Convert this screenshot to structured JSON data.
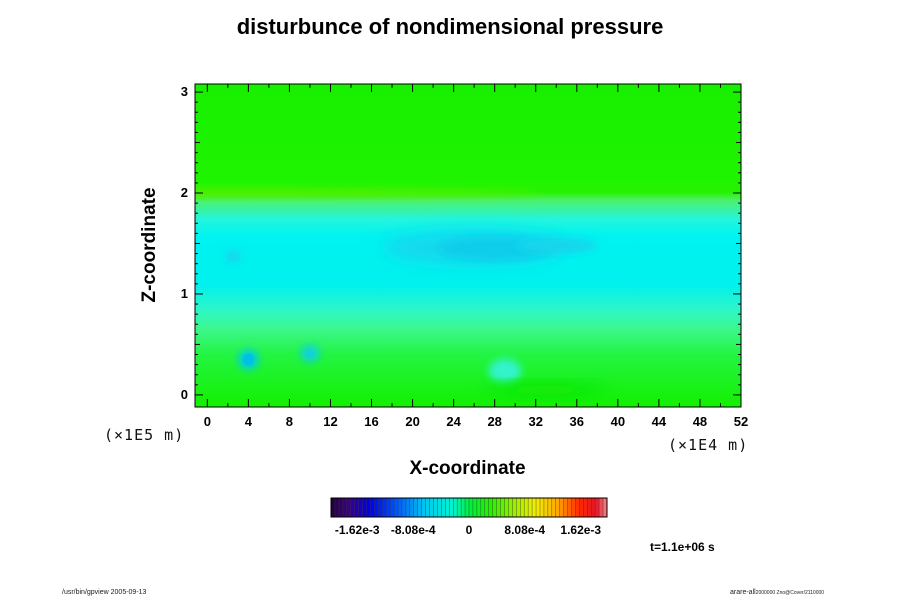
{
  "chart_data": {
    "type": "heatmap",
    "title": "disturbunce of nondimensional pressure",
    "xlabel": "X-coordinate",
    "ylabel": "Z-coordinate",
    "x_unit": "(×1E4 m)",
    "y_unit": "(×1E5 m)",
    "xlim": [
      -1.2,
      52
    ],
    "ylim": [
      -0.12,
      3.08
    ],
    "x_ticks": [
      "0",
      "4",
      "8",
      "12",
      "16",
      "20",
      "24",
      "28",
      "32",
      "36",
      "40",
      "44",
      "48",
      "52"
    ],
    "y_ticks": [
      "0",
      "1",
      "2",
      "3"
    ],
    "colorbar": {
      "range": [
        -0.002,
        0.002
      ],
      "tick_labels": [
        "-1.62e-3",
        "-8.08e-4",
        "0",
        "8.08e-4",
        "1.62e-3"
      ],
      "tick_values": [
        -0.00162,
        -0.000808,
        0,
        0.000808,
        0.00162
      ]
    },
    "field_summary": [
      {
        "region": "z 1.9–3.08",
        "value": 0.0
      },
      {
        "region": "z 1.0–1.9",
        "value": -0.0006
      },
      {
        "region": "x 20–36, z 1.3–1.6",
        "value": -0.0008
      },
      {
        "region": "z -0.12–0.9",
        "value": -0.0001
      },
      {
        "region": "x 4, z 0.35",
        "value": -0.00065
      },
      {
        "region": "x 10, z 0.4",
        "value": -0.00055
      }
    ]
  },
  "annotations": {
    "time": "t=1.1e+06 s",
    "footer_left": "/usr/bin/gpview 2005-09-13",
    "footer_right": "arare-all",
    "footer_right_small": "2000000 Zno@Cover/2110000"
  }
}
